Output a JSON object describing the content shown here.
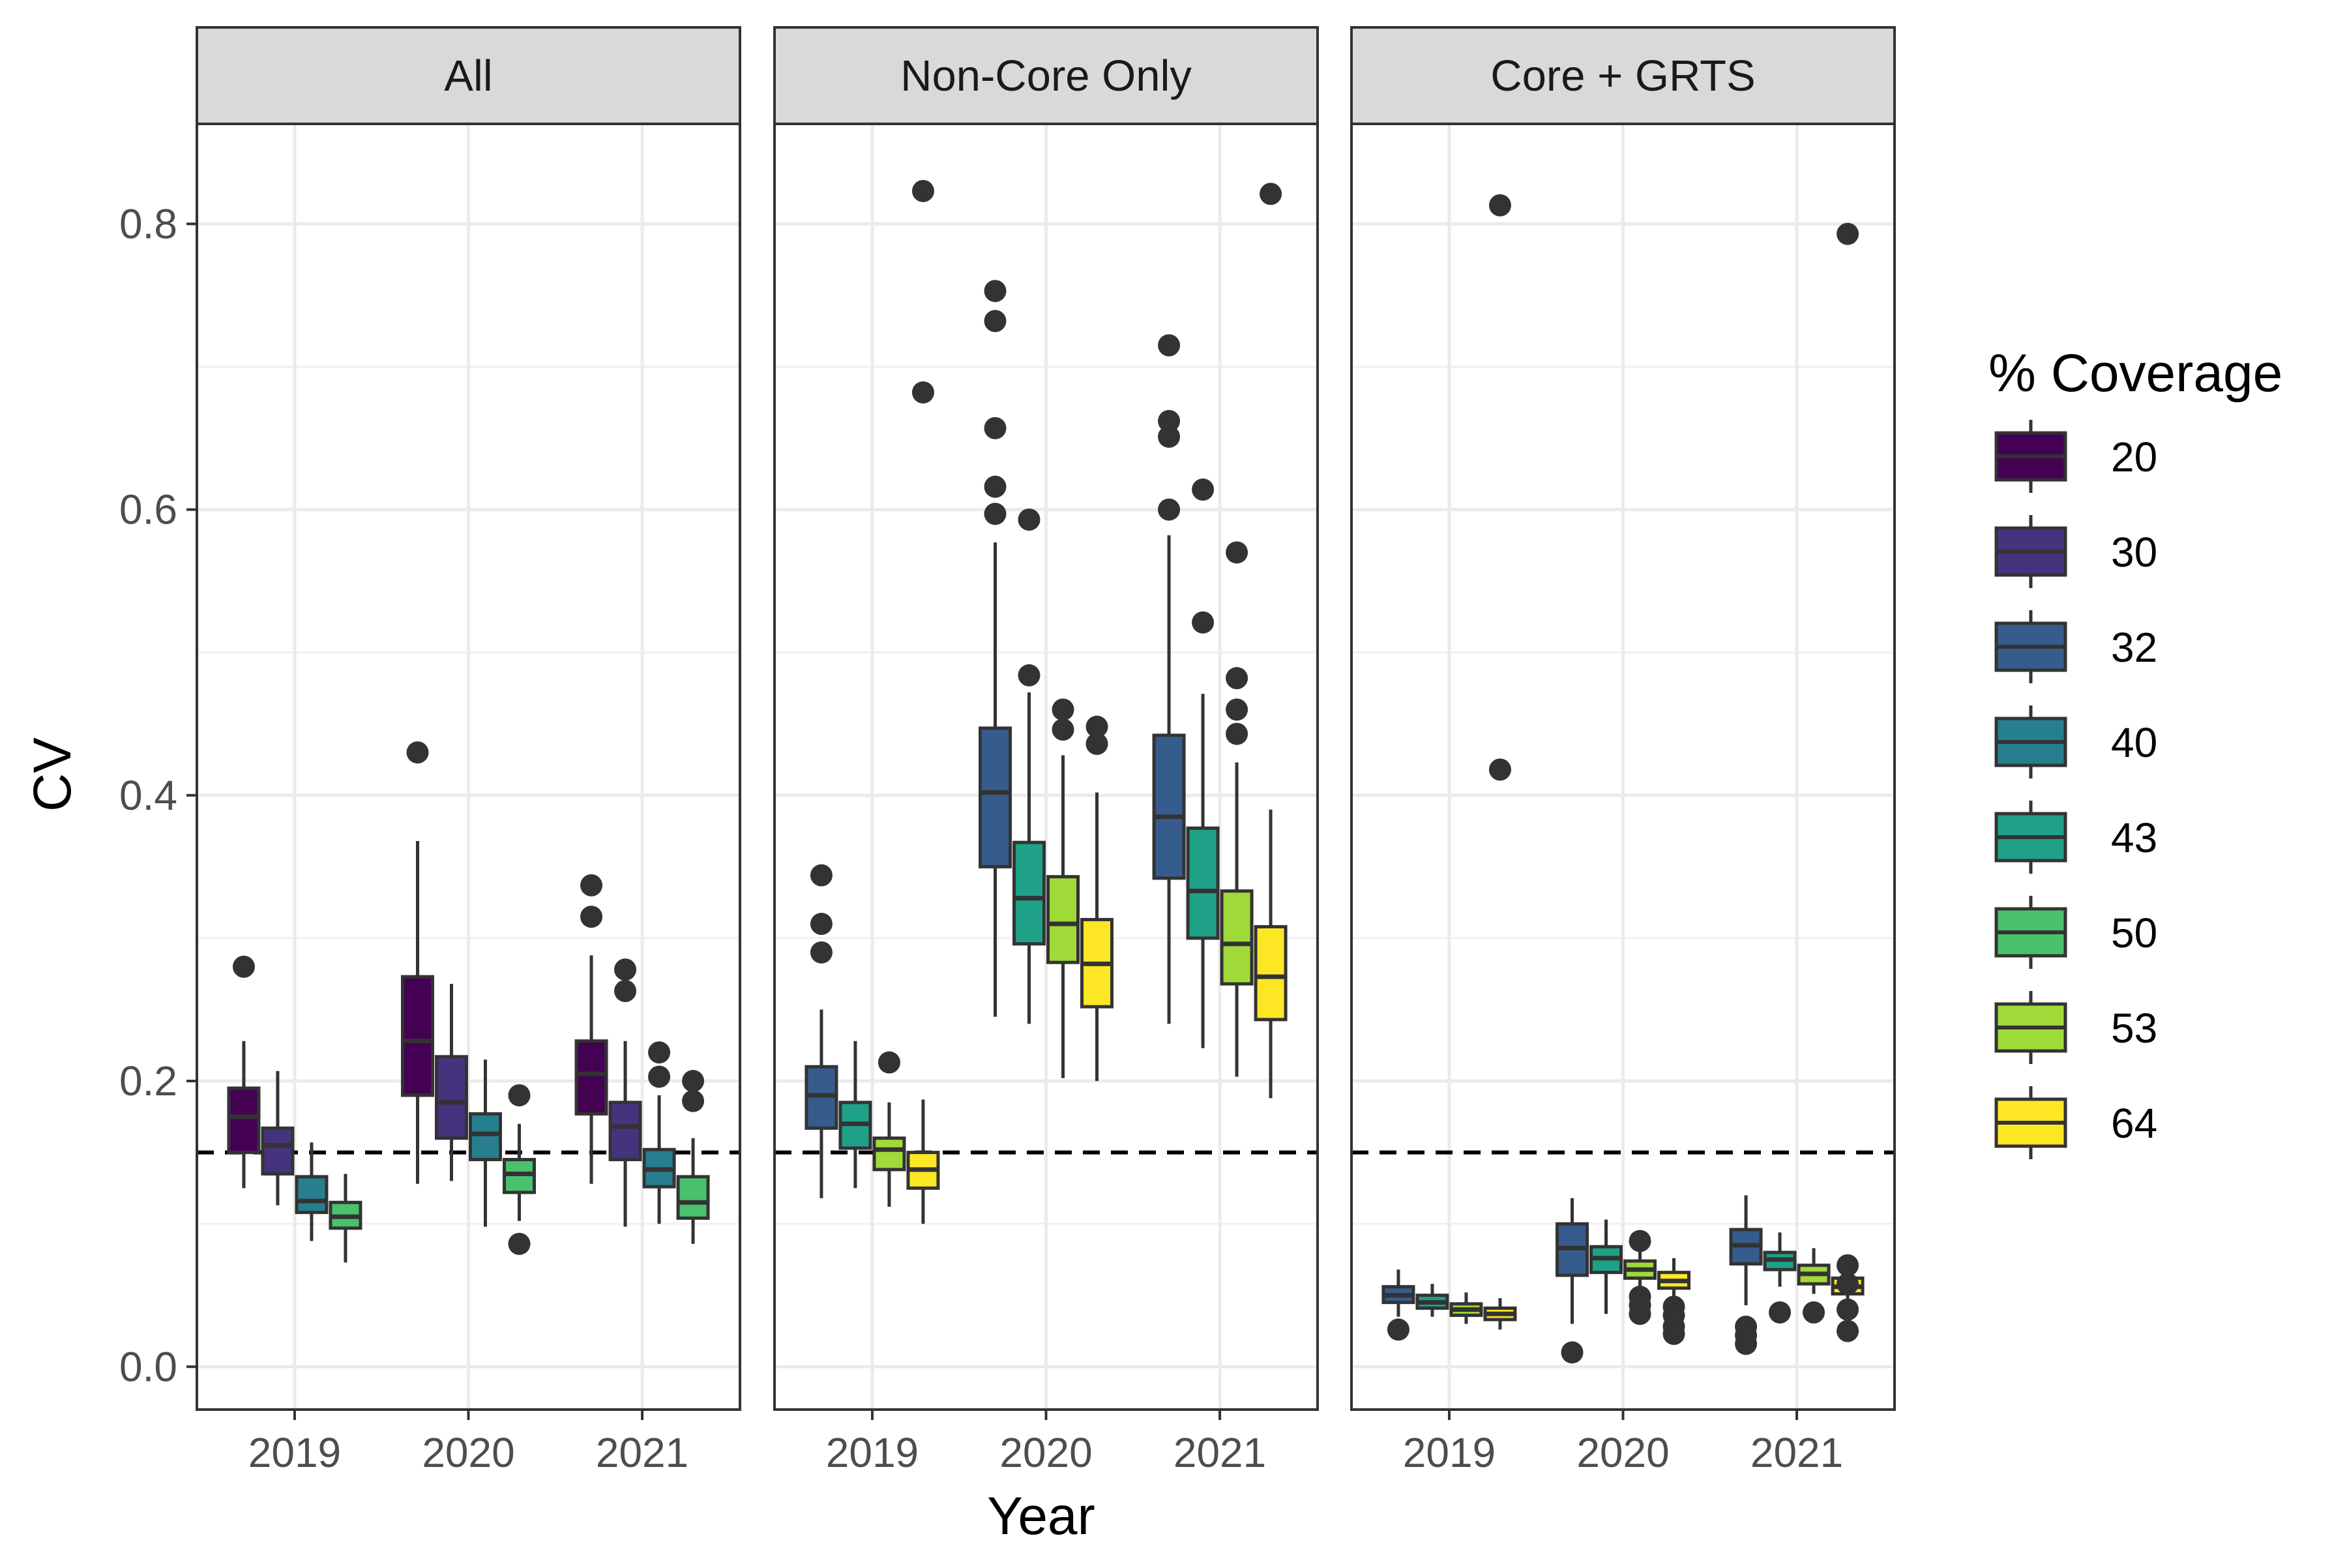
{
  "chart_data": {
    "type": "boxplot",
    "xlabel": "Year",
    "ylabel": "CV",
    "ylim": [
      -0.03,
      0.87
    ],
    "yticks": [
      0.0,
      0.2,
      0.4,
      0.6,
      0.8
    ],
    "ytick_labels": [
      "0.0",
      "0.2",
      "0.4",
      "0.6",
      "0.8"
    ],
    "x_categories": [
      "2019",
      "2020",
      "2021"
    ],
    "reference_line": {
      "y": 0.15,
      "style": "dashed",
      "color": "#000000"
    },
    "grid": true,
    "legend": {
      "title": "% Coverage",
      "placement": "right",
      "entries": [
        {
          "label": "20",
          "color": "#440154"
        },
        {
          "label": "30",
          "color": "#46337E"
        },
        {
          "label": "32",
          "color": "#365C8D"
        },
        {
          "label": "40",
          "color": "#277F8E"
        },
        {
          "label": "43",
          "color": "#1FA187"
        },
        {
          "label": "50",
          "color": "#4AC16D"
        },
        {
          "label": "53",
          "color": "#A0DA39"
        },
        {
          "label": "64",
          "color": "#FDE725"
        }
      ]
    },
    "facets": [
      {
        "label": "All",
        "groups": [
          {
            "year": "2019",
            "boxes": [
              {
                "coverage": "20",
                "whisker_low": 0.125,
                "q1": 0.15,
                "median": 0.175,
                "q3": 0.195,
                "whisker_high": 0.228,
                "outliers": [
                  0.28
                ]
              },
              {
                "coverage": "30",
                "whisker_low": 0.113,
                "q1": 0.135,
                "median": 0.155,
                "q3": 0.167,
                "whisker_high": 0.207,
                "outliers": []
              },
              {
                "coverage": "40",
                "whisker_low": 0.088,
                "q1": 0.108,
                "median": 0.116,
                "q3": 0.133,
                "whisker_high": 0.157,
                "outliers": []
              },
              {
                "coverage": "50",
                "whisker_low": 0.073,
                "q1": 0.097,
                "median": 0.105,
                "q3": 0.115,
                "whisker_high": 0.135,
                "outliers": []
              }
            ]
          },
          {
            "year": "2020",
            "boxes": [
              {
                "coverage": "20",
                "whisker_low": 0.128,
                "q1": 0.19,
                "median": 0.228,
                "q3": 0.273,
                "whisker_high": 0.368,
                "outliers": [
                  0.43
                ]
              },
              {
                "coverage": "30",
                "whisker_low": 0.13,
                "q1": 0.16,
                "median": 0.185,
                "q3": 0.217,
                "whisker_high": 0.268,
                "outliers": []
              },
              {
                "coverage": "40",
                "whisker_low": 0.098,
                "q1": 0.145,
                "median": 0.163,
                "q3": 0.177,
                "whisker_high": 0.215,
                "outliers": []
              },
              {
                "coverage": "50",
                "whisker_low": 0.102,
                "q1": 0.122,
                "median": 0.135,
                "q3": 0.145,
                "whisker_high": 0.17,
                "outliers": [
                  0.19,
                  0.086
                ]
              }
            ]
          },
          {
            "year": "2021",
            "boxes": [
              {
                "coverage": "20",
                "whisker_low": 0.128,
                "q1": 0.177,
                "median": 0.205,
                "q3": 0.228,
                "whisker_high": 0.288,
                "outliers": [
                  0.337,
                  0.315
                ]
              },
              {
                "coverage": "30",
                "whisker_low": 0.098,
                "q1": 0.145,
                "median": 0.168,
                "q3": 0.185,
                "whisker_high": 0.228,
                "outliers": [
                  0.278,
                  0.263
                ]
              },
              {
                "coverage": "40",
                "whisker_low": 0.1,
                "q1": 0.126,
                "median": 0.138,
                "q3": 0.152,
                "whisker_high": 0.19,
                "outliers": [
                  0.22,
                  0.203
                ]
              },
              {
                "coverage": "50",
                "whisker_low": 0.086,
                "q1": 0.104,
                "median": 0.115,
                "q3": 0.133,
                "whisker_high": 0.16,
                "outliers": [
                  0.2,
                  0.186
                ]
              }
            ]
          }
        ]
      },
      {
        "label": "Non-Core Only",
        "groups": [
          {
            "year": "2019",
            "boxes": [
              {
                "coverage": "32",
                "whisker_low": 0.118,
                "q1": 0.167,
                "median": 0.19,
                "q3": 0.21,
                "whisker_high": 0.25,
                "outliers": [
                  0.344,
                  0.31,
                  0.29
                ]
              },
              {
                "coverage": "43",
                "whisker_low": 0.125,
                "q1": 0.153,
                "median": 0.17,
                "q3": 0.185,
                "whisker_high": 0.228,
                "outliers": []
              },
              {
                "coverage": "53",
                "whisker_low": 0.112,
                "q1": 0.138,
                "median": 0.152,
                "q3": 0.16,
                "whisker_high": 0.185,
                "outliers": [
                  0.213
                ]
              },
              {
                "coverage": "64",
                "whisker_low": 0.1,
                "q1": 0.125,
                "median": 0.138,
                "q3": 0.15,
                "whisker_high": 0.187,
                "outliers": [
                  0.823,
                  0.682
                ]
              }
            ]
          },
          {
            "year": "2020",
            "boxes": [
              {
                "coverage": "32",
                "whisker_low": 0.245,
                "q1": 0.35,
                "median": 0.402,
                "q3": 0.447,
                "whisker_high": 0.577,
                "outliers": [
                  0.753,
                  0.732,
                  0.657,
                  0.616,
                  0.597
                ]
              },
              {
                "coverage": "43",
                "whisker_low": 0.24,
                "q1": 0.296,
                "median": 0.328,
                "q3": 0.367,
                "whisker_high": 0.472,
                "outliers": [
                  0.593,
                  0.484
                ]
              },
              {
                "coverage": "53",
                "whisker_low": 0.202,
                "q1": 0.283,
                "median": 0.31,
                "q3": 0.343,
                "whisker_high": 0.428,
                "outliers": [
                  0.46,
                  0.446
                ]
              },
              {
                "coverage": "64",
                "whisker_low": 0.2,
                "q1": 0.252,
                "median": 0.282,
                "q3": 0.313,
                "whisker_high": 0.402,
                "outliers": [
                  0.448,
                  0.436
                ]
              }
            ]
          },
          {
            "year": "2021",
            "boxes": [
              {
                "coverage": "32",
                "whisker_low": 0.24,
                "q1": 0.342,
                "median": 0.385,
                "q3": 0.442,
                "whisker_high": 0.582,
                "outliers": [
                  0.715,
                  0.662,
                  0.651,
                  0.6
                ]
              },
              {
                "coverage": "43",
                "whisker_low": 0.223,
                "q1": 0.3,
                "median": 0.333,
                "q3": 0.377,
                "whisker_high": 0.471,
                "outliers": [
                  0.614,
                  0.521
                ]
              },
              {
                "coverage": "53",
                "whisker_low": 0.203,
                "q1": 0.268,
                "median": 0.296,
                "q3": 0.333,
                "whisker_high": 0.423,
                "outliers": [
                  0.57,
                  0.482,
                  0.46,
                  0.443
                ]
              },
              {
                "coverage": "64",
                "whisker_low": 0.188,
                "q1": 0.243,
                "median": 0.273,
                "q3": 0.308,
                "whisker_high": 0.39,
                "outliers": [
                  0.821
                ]
              }
            ]
          }
        ]
      },
      {
        "label": "Core + GRTS",
        "groups": [
          {
            "year": "2019",
            "boxes": [
              {
                "coverage": "32",
                "whisker_low": 0.035,
                "q1": 0.045,
                "median": 0.05,
                "q3": 0.056,
                "whisker_high": 0.068,
                "outliers": [
                  0.026
                ]
              },
              {
                "coverage": "43",
                "whisker_low": 0.035,
                "q1": 0.041,
                "median": 0.045,
                "q3": 0.05,
                "whisker_high": 0.058,
                "outliers": []
              },
              {
                "coverage": "53",
                "whisker_low": 0.03,
                "q1": 0.036,
                "median": 0.04,
                "q3": 0.044,
                "whisker_high": 0.052,
                "outliers": []
              },
              {
                "coverage": "64",
                "whisker_low": 0.026,
                "q1": 0.033,
                "median": 0.037,
                "q3": 0.041,
                "whisker_high": 0.048,
                "outliers": [
                  0.813,
                  0.418
                ]
              }
            ]
          },
          {
            "year": "2020",
            "boxes": [
              {
                "coverage": "32",
                "whisker_low": 0.03,
                "q1": 0.064,
                "median": 0.083,
                "q3": 0.1,
                "whisker_high": 0.118,
                "outliers": [
                  0.01
                ]
              },
              {
                "coverage": "43",
                "whisker_low": 0.037,
                "q1": 0.066,
                "median": 0.076,
                "q3": 0.084,
                "whisker_high": 0.103,
                "outliers": []
              },
              {
                "coverage": "53",
                "whisker_low": 0.05,
                "q1": 0.062,
                "median": 0.068,
                "q3": 0.074,
                "whisker_high": 0.087,
                "outliers": [
                  0.088,
                  0.049,
                  0.043,
                  0.037
                ]
              },
              {
                "coverage": "64",
                "whisker_low": 0.046,
                "q1": 0.055,
                "median": 0.06,
                "q3": 0.066,
                "whisker_high": 0.076,
                "outliers": [
                  0.042,
                  0.036,
                  0.028,
                  0.023
                ]
              }
            ]
          },
          {
            "year": "2021",
            "boxes": [
              {
                "coverage": "32",
                "whisker_low": 0.043,
                "q1": 0.072,
                "median": 0.085,
                "q3": 0.096,
                "whisker_high": 0.12,
                "outliers": [
                  0.028,
                  0.022,
                  0.016
                ]
              },
              {
                "coverage": "43",
                "whisker_low": 0.056,
                "q1": 0.068,
                "median": 0.075,
                "q3": 0.08,
                "whisker_high": 0.094,
                "outliers": [
                  0.038
                ]
              },
              {
                "coverage": "53",
                "whisker_low": 0.051,
                "q1": 0.058,
                "median": 0.065,
                "q3": 0.071,
                "whisker_high": 0.083,
                "outliers": [
                  0.038
                ]
              },
              {
                "coverage": "64",
                "whisker_low": 0.043,
                "q1": 0.051,
                "median": 0.056,
                "q3": 0.062,
                "whisker_high": 0.071,
                "outliers": [
                  0.793,
                  0.071,
                  0.058,
                  0.04,
                  0.025
                ]
              }
            ]
          }
        ]
      }
    ]
  }
}
